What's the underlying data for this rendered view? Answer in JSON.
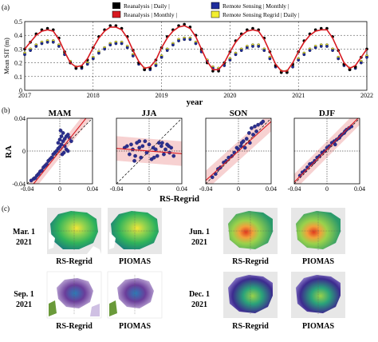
{
  "panel_labels": {
    "a": "(a)",
    "b": "(b)",
    "c": "(c)"
  },
  "colors": {
    "reanalysis_daily": "#000000",
    "reanalysis_monthly": "#d71920",
    "remote_sensing_monthly": "#1f2d9c",
    "remote_sensing_regrid_daily": "#f2ee30",
    "fit_line": "#d71920",
    "confidence_band": "#f6c9c9"
  },
  "legend": [
    {
      "label": "Reanalysis  |  Daily  |",
      "swatch": "#000000"
    },
    {
      "label": "Remote Sensing  |  Monthly  |",
      "swatch": "#1f2d9c"
    },
    {
      "label": "Reanalysis  |  Monthly  |",
      "swatch": "#d71920"
    },
    {
      "label": "Remote Sensing Regrid  |  Daily  |",
      "swatch": "#f2ee30"
    }
  ],
  "chart_data": [
    {
      "type": "line",
      "panel": "(a)",
      "ylabel": "Mean SIT (m)",
      "xlabel": "year",
      "xlim": [
        2017,
        2022
      ],
      "ylim": [
        0,
        0.5
      ],
      "xticks": [
        "2017",
        "2018",
        "2019",
        "2020",
        "2021",
        "2022"
      ],
      "yticks": [
        "0",
        "0.1",
        "0.2",
        "0.3",
        "0.4",
        "0.5"
      ],
      "grid": true,
      "x": [
        2017.0,
        2017.083,
        2017.167,
        2017.25,
        2017.333,
        2017.417,
        2017.5,
        2017.583,
        2017.667,
        2017.75,
        2017.833,
        2017.917,
        2018.0,
        2018.083,
        2018.167,
        2018.25,
        2018.333,
        2018.417,
        2018.5,
        2018.583,
        2018.667,
        2018.75,
        2018.833,
        2018.917,
        2019.0,
        2019.083,
        2019.167,
        2019.25,
        2019.333,
        2019.417,
        2019.5,
        2019.583,
        2019.667,
        2019.75,
        2019.833,
        2019.917,
        2020.0,
        2020.083,
        2020.167,
        2020.25,
        2020.333,
        2020.417,
        2020.5,
        2020.583,
        2020.667,
        2020.75,
        2020.833,
        2020.917,
        2021.0,
        2021.083,
        2021.167,
        2021.25,
        2021.333,
        2021.417,
        2021.5,
        2021.583,
        2021.667,
        2021.75,
        2021.833,
        2021.917,
        2022.0
      ],
      "series": [
        {
          "name": "Reanalysis  |  Daily",
          "color": "#000000",
          "style": "markers",
          "values": [
            0.3,
            0.35,
            0.41,
            0.44,
            0.45,
            0.44,
            0.38,
            0.28,
            0.2,
            0.16,
            0.17,
            0.22,
            0.31,
            0.39,
            0.44,
            0.47,
            0.47,
            0.45,
            0.39,
            0.29,
            0.2,
            0.15,
            0.16,
            0.22,
            0.31,
            0.39,
            0.44,
            0.47,
            0.48,
            0.46,
            0.4,
            0.3,
            0.2,
            0.14,
            0.14,
            0.2,
            0.28,
            0.36,
            0.41,
            0.44,
            0.45,
            0.44,
            0.38,
            0.28,
            0.18,
            0.13,
            0.13,
            0.19,
            0.28,
            0.36,
            0.41,
            0.44,
            0.45,
            0.45,
            0.39,
            0.29,
            0.19,
            0.15,
            0.17,
            0.24,
            0.3
          ]
        },
        {
          "name": "Reanalysis  |  Monthly",
          "color": "#d71920",
          "style": "line",
          "values": [
            0.3,
            0.35,
            0.4,
            0.43,
            0.44,
            0.43,
            0.37,
            0.28,
            0.2,
            0.17,
            0.18,
            0.23,
            0.31,
            0.38,
            0.43,
            0.46,
            0.46,
            0.44,
            0.38,
            0.29,
            0.21,
            0.16,
            0.17,
            0.22,
            0.31,
            0.38,
            0.43,
            0.46,
            0.47,
            0.45,
            0.39,
            0.3,
            0.21,
            0.15,
            0.15,
            0.2,
            0.28,
            0.35,
            0.4,
            0.43,
            0.44,
            0.43,
            0.37,
            0.28,
            0.19,
            0.14,
            0.14,
            0.2,
            0.28,
            0.35,
            0.4,
            0.43,
            0.44,
            0.44,
            0.38,
            0.29,
            0.2,
            0.16,
            0.18,
            0.24,
            0.3
          ]
        },
        {
          "name": "Remote Sensing  |  Monthly",
          "color": "#1f2d9c",
          "style": "markers",
          "values": [
            0.26,
            0.29,
            0.32,
            0.34,
            0.35,
            0.35,
            0.32,
            0.26,
            0.2,
            0.16,
            0.16,
            0.19,
            0.23,
            0.27,
            0.3,
            0.33,
            0.34,
            0.34,
            0.31,
            0.25,
            0.19,
            0.15,
            0.15,
            0.18,
            0.24,
            0.29,
            0.33,
            0.36,
            0.37,
            0.37,
            0.34,
            0.28,
            0.21,
            0.16,
            0.15,
            0.18,
            0.22,
            0.26,
            0.29,
            0.31,
            0.32,
            0.32,
            0.29,
            0.23,
            0.17,
            0.13,
            0.13,
            0.17,
            0.22,
            0.26,
            0.29,
            0.31,
            0.32,
            0.32,
            0.29,
            0.23,
            0.18,
            0.15,
            0.16,
            0.2,
            0.24
          ]
        },
        {
          "name": "Remote Sensing Regrid  |  Daily",
          "color": "#f2ee30",
          "style": "markers",
          "values": [
            0.27,
            0.3,
            0.33,
            0.35,
            0.36,
            0.36,
            0.33,
            0.27,
            0.21,
            0.17,
            0.17,
            0.2,
            0.24,
            0.28,
            0.31,
            0.34,
            0.35,
            0.35,
            0.32,
            0.26,
            0.2,
            0.16,
            0.16,
            0.19,
            0.25,
            0.3,
            0.34,
            0.37,
            0.38,
            0.38,
            0.35,
            0.29,
            0.22,
            0.17,
            0.16,
            0.19,
            0.23,
            0.27,
            0.3,
            0.32,
            0.33,
            0.33,
            0.3,
            0.24,
            0.18,
            0.14,
            0.14,
            0.18,
            0.23,
            0.27,
            0.3,
            0.32,
            0.33,
            0.33,
            0.3,
            0.24,
            0.19,
            0.16,
            0.17,
            0.21,
            0.25
          ]
        }
      ]
    },
    {
      "type": "scatter",
      "panel": "(b)",
      "title": "MAM",
      "xlim": [
        -0.04,
        0.04
      ],
      "ylim": [
        -0.04,
        0.04
      ],
      "xticks": [
        "-0.04",
        "0",
        "0.04"
      ],
      "yticks": [
        "-0.04",
        "0",
        "0.04"
      ],
      "ylabel": "RA",
      "xlabel": "RS-Regrid",
      "fit": {
        "slope": 1.25,
        "intercept": 0.0
      },
      "band_halfwidth": 0.008,
      "x": [
        -0.035,
        -0.032,
        -0.03,
        -0.028,
        -0.026,
        -0.024,
        -0.022,
        -0.02,
        -0.018,
        -0.016,
        -0.014,
        -0.012,
        -0.01,
        -0.008,
        -0.006,
        -0.004,
        -0.002,
        0.0,
        0.002,
        0.004,
        0.006,
        0.008,
        0.01,
        0.012,
        0.014,
        0.0,
        0.002,
        0.004,
        -0.002,
        0.006,
        0.008,
        0.01,
        0.003,
        0.005,
        0.001
      ],
      "y": [
        -0.036,
        -0.034,
        -0.033,
        -0.03,
        -0.028,
        -0.025,
        -0.024,
        -0.02,
        -0.018,
        -0.016,
        -0.012,
        -0.01,
        -0.008,
        -0.004,
        -0.002,
        0.0,
        0.003,
        0.005,
        0.008,
        0.012,
        0.015,
        0.018,
        0.02,
        0.016,
        0.012,
        0.014,
        0.018,
        0.022,
        0.01,
        0.006,
        0.002,
        0.0,
        -0.004,
        -0.002,
        0.025
      ]
    },
    {
      "type": "scatter",
      "panel": "(b)",
      "title": "JJA",
      "xlim": [
        -0.04,
        0.04
      ],
      "ylim": [
        -0.04,
        0.04
      ],
      "xticks": [
        "-0.04",
        "0",
        "0.04"
      ],
      "fit": {
        "slope": -0.08,
        "intercept": 0.0
      },
      "band_halfwidth": 0.015,
      "x": [
        -0.03,
        -0.027,
        -0.024,
        -0.022,
        -0.02,
        -0.017,
        -0.015,
        -0.012,
        -0.01,
        -0.008,
        -0.005,
        -0.003,
        0.0,
        0.003,
        0.005,
        0.008,
        0.01,
        0.012,
        0.015,
        0.018,
        0.02,
        0.022,
        0.025,
        0.027,
        0.03,
        -0.018,
        -0.012,
        0.006,
        0.016,
        0.024
      ],
      "y": [
        0.004,
        0.006,
        -0.004,
        0.008,
        0.002,
        -0.006,
        0.01,
        0.004,
        -0.008,
        0.006,
        0.012,
        -0.002,
        0.008,
        -0.01,
        0.004,
        0.002,
        -0.006,
        0.01,
        0.006,
        -0.004,
        0.002,
        0.008,
        -0.002,
        0.004,
        -0.006,
        -0.012,
        0.012,
        -0.008,
        0.01,
        0.006
      ]
    },
    {
      "type": "scatter",
      "panel": "(b)",
      "title": "SON",
      "xlim": [
        -0.04,
        0.04
      ],
      "ylim": [
        -0.04,
        0.04
      ],
      "xticks": [
        "-0.04",
        "0",
        "0.04"
      ],
      "fit": {
        "slope": 0.9,
        "intercept": 0.0
      },
      "band_halfwidth": 0.012,
      "x": [
        -0.032,
        -0.028,
        -0.025,
        -0.022,
        -0.018,
        -0.015,
        -0.012,
        -0.008,
        -0.005,
        -0.002,
        0.0,
        0.003,
        0.006,
        0.01,
        0.013,
        0.016,
        0.02,
        0.024,
        0.028,
        0.03,
        0.014,
        0.018,
        0.022,
        0.008,
        0.004
      ],
      "y": [
        -0.032,
        -0.028,
        -0.022,
        -0.02,
        -0.014,
        -0.012,
        -0.008,
        -0.006,
        -0.002,
        0.004,
        0.002,
        0.006,
        0.012,
        0.015,
        0.022,
        0.028,
        0.03,
        0.032,
        0.034,
        0.036,
        0.01,
        0.02,
        0.024,
        0.004,
        0.01
      ]
    },
    {
      "type": "scatter",
      "panel": "(b)",
      "title": "DJF",
      "xlim": [
        -0.04,
        0.04
      ],
      "ylim": [
        -0.04,
        0.04
      ],
      "xticks": [
        "-0.04",
        "0",
        "0.04"
      ],
      "fit": {
        "slope": 1.0,
        "intercept": 0.002
      },
      "band_halfwidth": 0.01,
      "x": [
        -0.033,
        -0.03,
        -0.027,
        -0.024,
        -0.021,
        -0.018,
        -0.015,
        -0.012,
        -0.009,
        -0.006,
        -0.003,
        0.0,
        0.003,
        0.006,
        0.009,
        0.012,
        0.015,
        0.018,
        0.021,
        0.024,
        0.027,
        0.03,
        0.01,
        0.016,
        0.022
      ],
      "y": [
        -0.03,
        -0.026,
        -0.024,
        -0.02,
        -0.016,
        -0.015,
        -0.012,
        -0.008,
        -0.006,
        -0.002,
        0.0,
        0.004,
        0.006,
        0.01,
        0.012,
        0.014,
        0.016,
        0.02,
        0.022,
        0.026,
        0.028,
        0.03,
        0.008,
        0.018,
        0.024
      ]
    }
  ],
  "maps": [
    {
      "date": [
        "Mar. 1",
        "2021"
      ],
      "labels": [
        "RS-Regrid",
        "PIOMAS"
      ],
      "palette": "green"
    },
    {
      "date": [
        "Jun. 1",
        "2021"
      ],
      "labels": [
        "RS-Regrid",
        "PIOMAS"
      ],
      "palette": "green"
    },
    {
      "date": [
        "Sep. 1",
        "2021"
      ],
      "labels": [
        "RS-Regrid",
        "PIOMAS"
      ],
      "palette": "purple"
    },
    {
      "date": [
        "Dec. 1",
        "2021"
      ],
      "labels": [
        "RS-Regrid",
        "PIOMAS"
      ],
      "palette": "purple-green"
    }
  ]
}
